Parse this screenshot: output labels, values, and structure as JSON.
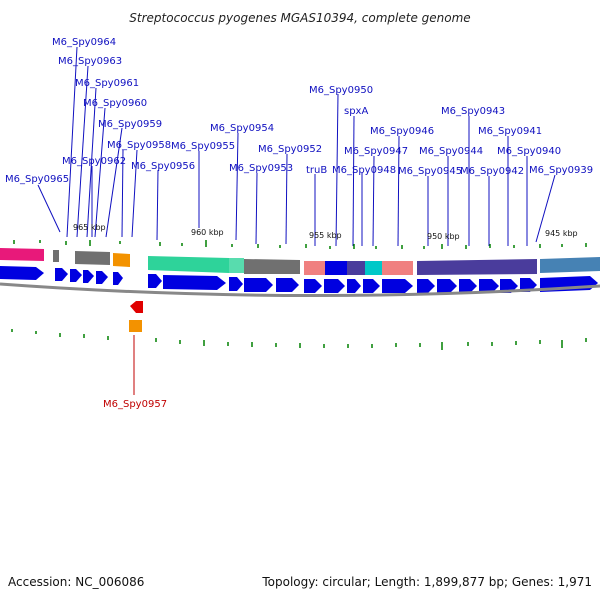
{
  "title": "Streptococcus pyogenes MGAS10394, complete genome",
  "footer": {
    "accession": "Accession: NC_006086",
    "stats": "Topology: circular; Length: 1,899,877 bp; Genes: 1,971"
  },
  "scale_labels": [
    "965 kbp",
    "960 kbp",
    "955 kbp",
    "950 kbp",
    "945 kbp"
  ],
  "colors": {
    "gene_arrow": "#0000e0",
    "highlight_gene": "#e00000",
    "label_blue": "#1010c0",
    "label_red": "#c00000",
    "tick_green": "#008000",
    "backbone": "#888888",
    "cog_pink": "#e8197a",
    "cog_gray": "#707070",
    "cog_orange": "#f39200",
    "cog_green": "#2ed39a",
    "cog_salmon": "#f08080",
    "cog_cyan": "#00c8c8",
    "cog_blue": "#0000e0",
    "cog_indigo": "#4a3c9c",
    "cog_steel": "#4682b4"
  },
  "gene_labels": [
    "M6_Spy0964",
    "M6_Spy0963",
    "M6_Spy0961",
    "M6_Spy0960",
    "M6_Spy0959",
    "M6_Spy0958",
    "M6_Spy0962",
    "M6_Spy0965",
    "M6_Spy0956",
    "M6_Spy0955",
    "M6_Spy0954",
    "M6_Spy0953",
    "M6_Spy0952",
    "M6_Spy0950",
    "truB",
    "M6_Spy0948",
    "spxA",
    "M6_Spy0947",
    "M6_Spy0946",
    "M6_Spy0945",
    "M6_Spy0944",
    "M6_Spy0943",
    "M6_Spy0942",
    "M6_Spy0941",
    "M6_Spy0940",
    "M6_Spy0939"
  ],
  "highlight_label": "M6_Spy0957"
}
